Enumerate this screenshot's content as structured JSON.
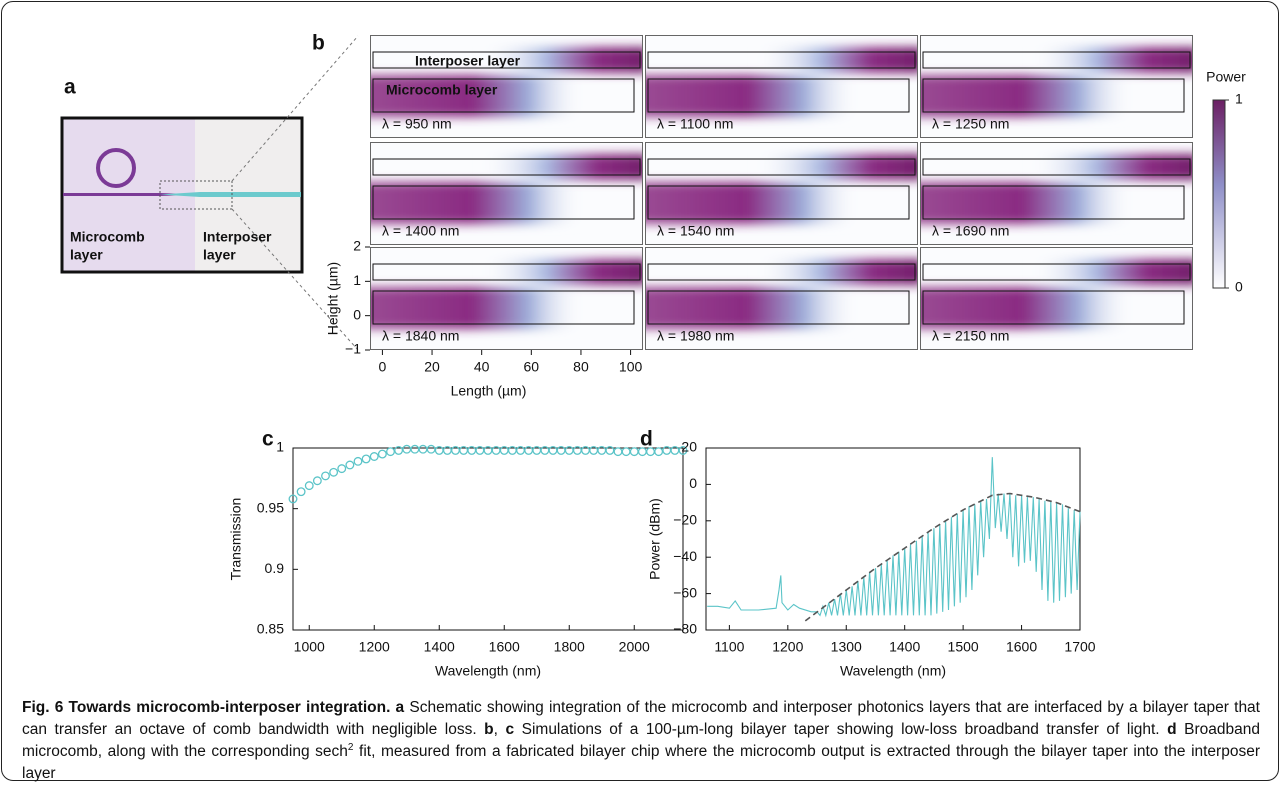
{
  "schematic": {
    "label": "a",
    "texts": [
      "Microcomb",
      "layer",
      "Interposer",
      "layer"
    ]
  },
  "chart_data": [
    {
      "type": "heatmap",
      "panel_label": "b",
      "xlabel": "Length (µm)",
      "ylabel": "Height (µm)",
      "xlim": [
        -5,
        105
      ],
      "ylim": [
        -1,
        2
      ],
      "xticks": [
        0,
        20,
        40,
        60,
        80,
        100
      ],
      "yticks": [
        {
          "value": -1,
          "label": "−1"
        },
        0,
        1,
        2
      ],
      "overlay_labels": [
        "Interposer layer",
        "Microcomb layer"
      ],
      "panels": [
        "λ = 950 nm",
        "λ = 1100 nm",
        "λ = 1250 nm",
        "λ = 1400 nm",
        "λ = 1540 nm",
        "λ = 1690 nm",
        "λ = 1840 nm",
        "λ = 1980 nm",
        "λ = 2150 nm"
      ],
      "colorbar": {
        "label": "Power",
        "lim": [
          0,
          1
        ],
        "ticks": [
          0,
          1
        ]
      }
    },
    {
      "type": "scatter",
      "panel_label": "c",
      "xlabel": "Wavelength (nm)",
      "ylabel": "Transmission",
      "color": "#5bc4c8",
      "xlim": [
        950,
        2150
      ],
      "ylim": [
        0.85,
        1
      ],
      "xticks": [
        1000,
        1200,
        1400,
        1600,
        1800,
        2000
      ],
      "yticks": [
        0.85,
        0.9,
        0.95,
        1
      ],
      "x": [
        950,
        975,
        1000,
        1025,
        1050,
        1075,
        1100,
        1125,
        1150,
        1175,
        1200,
        1225,
        1250,
        1275,
        1300,
        1325,
        1350,
        1375,
        1400,
        1425,
        1450,
        1475,
        1500,
        1525,
        1550,
        1575,
        1600,
        1625,
        1650,
        1675,
        1700,
        1725,
        1750,
        1775,
        1800,
        1825,
        1850,
        1875,
        1900,
        1925,
        1950,
        1975,
        2000,
        2025,
        2050,
        2075,
        2100,
        2125,
        2150
      ],
      "values": [
        0.958,
        0.964,
        0.969,
        0.973,
        0.977,
        0.98,
        0.983,
        0.986,
        0.989,
        0.991,
        0.993,
        0.995,
        0.997,
        0.998,
        0.999,
        0.999,
        0.999,
        0.999,
        0.998,
        0.998,
        0.998,
        0.998,
        0.998,
        0.998,
        0.998,
        0.998,
        0.998,
        0.998,
        0.998,
        0.998,
        0.998,
        0.998,
        0.998,
        0.998,
        0.998,
        0.998,
        0.998,
        0.998,
        0.998,
        0.998,
        0.997,
        0.997,
        0.997,
        0.997,
        0.997,
        0.997,
        0.998,
        0.998,
        0.998
      ]
    },
    {
      "type": "line",
      "panel_label": "d",
      "xlabel": "Wavelength (nm)",
      "ylabel": "Power (dBm)",
      "xlim": [
        1060,
        1700
      ],
      "ylim": [
        -80,
        20
      ],
      "xticks": [
        1100,
        1200,
        1300,
        1400,
        1500,
        1600,
        1700
      ],
      "yticks": [
        {
          "value": -80,
          "label": "−80"
        },
        {
          "value": -60,
          "label": "−60"
        },
        {
          "value": -40,
          "label": "−40"
        },
        {
          "value": -20,
          "label": "−20"
        },
        0,
        20
      ],
      "series": [
        {
          "color": "#5bc4c8",
          "x": [
            1062,
            1080,
            1100,
            1110,
            1120,
            1150,
            1180,
            1185,
            1188,
            1190,
            1200,
            1210,
            1220,
            1240,
            1250,
            1255,
            1260,
            1265,
            1270,
            1275,
            1280,
            1285,
            1290,
            1295,
            1300,
            1305,
            1310,
            1315,
            1320,
            1325,
            1330,
            1335,
            1340,
            1345,
            1350,
            1355,
            1360,
            1365,
            1370,
            1375,
            1380,
            1385,
            1390,
            1395,
            1400,
            1405,
            1410,
            1415,
            1420,
            1425,
            1430,
            1435,
            1440,
            1445,
            1450,
            1455,
            1460,
            1465,
            1470,
            1475,
            1480,
            1485,
            1490,
            1495,
            1500,
            1505,
            1510,
            1515,
            1520,
            1525,
            1530,
            1535,
            1540,
            1545,
            1550,
            1555,
            1560,
            1565,
            1570,
            1575,
            1580,
            1585,
            1590,
            1595,
            1600,
            1605,
            1610,
            1615,
            1620,
            1625,
            1630,
            1635,
            1640,
            1645,
            1650,
            1655,
            1660,
            1665,
            1670,
            1675,
            1680,
            1685,
            1690,
            1695,
            1700
          ],
          "values": [
            -67,
            -67,
            -68,
            -64,
            -69,
            -69,
            -68,
            -58,
            -50,
            -65,
            -69,
            -66,
            -68,
            -70,
            -70,
            -72,
            -67,
            -72,
            -65,
            -72,
            -63,
            -72,
            -60,
            -72,
            -58,
            -72,
            -56,
            -72,
            -53,
            -72,
            -51,
            -72,
            -48,
            -72,
            -46,
            -72,
            -44,
            -72,
            -42,
            -72,
            -39,
            -72,
            -37,
            -72,
            -35,
            -72,
            -33,
            -72,
            -31,
            -72,
            -28,
            -72,
            -26,
            -72,
            -24,
            -71,
            -22,
            -70,
            -20,
            -69,
            -18,
            -67,
            -16,
            -65,
            -14,
            -62,
            -12,
            -58,
            -11,
            -50,
            -9,
            -40,
            -8,
            -30,
            15,
            -24,
            -5,
            -26,
            -5,
            -30,
            -5,
            -40,
            -6,
            -45,
            -6,
            -43,
            -7,
            -42,
            -7,
            -48,
            -8,
            -58,
            -9,
            -64,
            -9,
            -65,
            -10,
            -64,
            -11,
            -62,
            -13,
            -60,
            -14,
            -58,
            -15
          ]
        },
        {
          "color": "#555555",
          "style": "dashed",
          "x": [
            1230,
            1300,
            1350,
            1400,
            1450,
            1500,
            1550,
            1580,
            1620,
            1660,
            1700
          ],
          "values": [
            -75,
            -58,
            -46,
            -35,
            -24,
            -14,
            -6,
            -5,
            -7,
            -10,
            -15
          ]
        }
      ]
    }
  ],
  "caption": {
    "segments": [
      {
        "text": "Fig. 6 Towards microcomb-interposer integration.",
        "style": "bold"
      },
      {
        "text": " a",
        "style": "bold"
      },
      {
        "text": " Schematic showing integration of the microcomb and interposer photonics layers that are interfaced by a bilayer taper that can transfer an octave of comb bandwidth with negligible loss. ",
        "style": "normal"
      },
      {
        "text": "b",
        "style": "bold"
      },
      {
        "text": ", ",
        "style": "normal"
      },
      {
        "text": "c",
        "style": "bold"
      },
      {
        "text": " Simulations of a 100-µm-long bilayer taper showing low-loss broadband transfer of light. ",
        "style": "normal"
      },
      {
        "text": "d",
        "style": "bold"
      },
      {
        "text": " Broadband microcomb, along with the corresponding sech",
        "style": "normal"
      },
      {
        "text": "2",
        "style": "sup"
      },
      {
        "text": " fit, measured from a fabricated bilayer chip where the microcomb output is extracted through the bilayer taper into the interposer layer",
        "style": "normal"
      }
    ]
  }
}
